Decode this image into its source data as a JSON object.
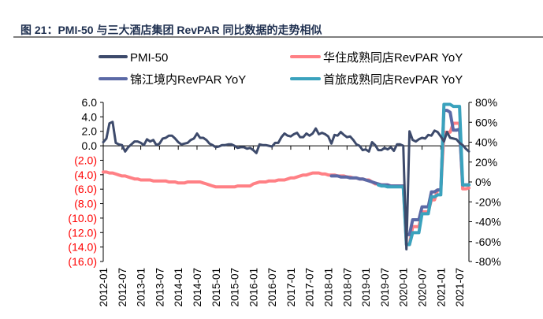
{
  "title": "图 21：PMI-50 与三大酒店集团 RevPAR 同比数据的走势相似",
  "chart_data": {
    "type": "line",
    "title": "图 21：PMI-50 与三大酒店集团 RevPAR 同比数据的走势相似",
    "x_range": [
      "2012-01",
      "2021-10"
    ],
    "x_tick_labels": [
      "2012-01",
      "2012-07",
      "2013-01",
      "2013-07",
      "2014-01",
      "2014-07",
      "2015-01",
      "2015-07",
      "2016-01",
      "2016-07",
      "2017-01",
      "2017-07",
      "2018-01",
      "2018-07",
      "2019-01",
      "2019-07",
      "2020-01",
      "2020-07",
      "2021-01",
      "2021-07"
    ],
    "left_axis": {
      "range": [
        -16,
        6
      ],
      "tick_labels": [
        "6.0",
        "4.0",
        "2.0",
        "0.0",
        "(2.0)",
        "(4.0)",
        "(6.0)",
        "(8.0)",
        "(10.0)",
        "(12.0)",
        "(14.0)",
        "(16.0)"
      ],
      "ticks": [
        6,
        4,
        2,
        0,
        -2,
        -4,
        -6,
        -8,
        -10,
        -12,
        -14,
        -16
      ],
      "negative_color": "#ff0000"
    },
    "right_axis": {
      "range": [
        -80,
        80
      ],
      "tick_labels": [
        "80%",
        "60%",
        "40%",
        "20%",
        "0%",
        "-20%",
        "-40%",
        "-60%",
        "-80%"
      ],
      "ticks": [
        80,
        60,
        40,
        20,
        0,
        -20,
        -40,
        -60,
        -80
      ]
    },
    "grid": false,
    "legend_placement": "top",
    "series": [
      {
        "name": "PMI-50",
        "axis": "left",
        "color": "#3d4a6b",
        "start": "2012-01",
        "values": [
          0.5,
          1.0,
          3.1,
          3.3,
          0.4,
          0.2,
          0.1,
          -0.8,
          -0.2,
          0.2,
          0.6,
          0.6,
          0.4,
          0.1,
          0.9,
          0.6,
          0.8,
          0.1,
          0.3,
          1.0,
          1.1,
          1.4,
          1.4,
          1.0,
          0.5,
          0.2,
          0.3,
          0.4,
          0.8,
          1.0,
          1.7,
          1.1,
          1.1,
          0.8,
          0.3,
          0.1,
          -0.2,
          -0.1,
          0.1,
          0.1,
          0.2,
          0.2,
          0.0,
          -0.3,
          -0.2,
          -0.2,
          -0.4,
          -0.3,
          -0.6,
          -1.0,
          0.2,
          0.1,
          0.1,
          0.0,
          -0.1,
          0.4,
          0.4,
          1.2,
          1.7,
          1.4,
          1.3,
          1.6,
          1.8,
          1.2,
          1.2,
          1.7,
          1.4,
          1.7,
          2.4,
          1.6,
          1.8,
          1.6,
          1.3,
          0.3,
          1.5,
          1.4,
          1.9,
          1.5,
          1.2,
          1.3,
          0.8,
          0.2,
          0.0,
          -0.6,
          -0.5,
          -0.8,
          0.5,
          0.1,
          -0.6,
          -0.6,
          -0.3,
          -0.5,
          -0.2,
          -0.7,
          0.2,
          0.2,
          0.0,
          -14.3,
          2.0,
          0.8,
          0.6,
          0.9,
          1.1,
          1.0,
          1.5,
          1.4,
          2.1,
          1.9,
          1.3,
          0.6,
          1.9,
          1.1,
          1.0,
          0.9,
          0.4,
          0.1,
          -0.4,
          -0.8
        ]
      },
      {
        "name": "华住成熟同店RevPAR YoY",
        "axis": "right",
        "color": "#ff8085",
        "start": "2012-01",
        "values": [
          10,
          10,
          9,
          9,
          8,
          7,
          6,
          6,
          5,
          4,
          3,
          3,
          2,
          2,
          2,
          2,
          1,
          1,
          1,
          1,
          1,
          0,
          0,
          0,
          -1,
          -1,
          -1,
          0,
          0,
          0,
          0,
          0,
          -1,
          -2,
          -3,
          -4,
          -5,
          -5,
          -5,
          -5,
          -5,
          -5,
          -5,
          -4,
          -4,
          -4,
          -4,
          -4,
          -2,
          -1,
          0,
          0,
          0,
          1,
          1,
          1,
          2,
          2,
          2,
          3,
          4,
          4,
          5,
          6,
          7,
          7,
          8,
          9,
          9,
          9,
          8,
          8,
          7,
          7,
          7,
          6,
          6,
          6,
          5,
          5,
          4,
          4,
          3,
          3,
          2,
          2,
          0,
          -2,
          -2,
          -3,
          -3,
          -3,
          -4,
          -4,
          -4,
          -4,
          -4,
          -63,
          -63,
          -45,
          -45,
          -45,
          -30,
          -30,
          -30,
          -18,
          -18,
          -8,
          -8,
          50,
          50,
          50,
          59,
          59,
          59,
          -7,
          -7,
          -6
        ]
      },
      {
        "name": "锦江境内RevPAR YoY",
        "axis": "right",
        "color": "#5b69a6",
        "start": "2018-02",
        "values": [
          6,
          6,
          6,
          5,
          5,
          5,
          4,
          4,
          4,
          3,
          3,
          2,
          1,
          0,
          -1,
          -2,
          -3,
          -3,
          -3,
          -4,
          -4,
          -4,
          -4,
          -4,
          -53,
          -53,
          -38,
          -38,
          -38,
          -25,
          -25,
          -25,
          -10,
          -10,
          -8,
          -8,
          72,
          72,
          70,
          52,
          52,
          53,
          -3,
          -3,
          -3
        ]
      },
      {
        "name": "首旅成熟同店RevPAR YoY",
        "axis": "right",
        "color": "#3aa2bd",
        "start": "2019-05",
        "values": [
          -3,
          -4,
          -4,
          -5,
          -5,
          -5,
          -5,
          -5,
          -5,
          -63,
          -63,
          -51,
          -51,
          -51,
          -32,
          -32,
          -32,
          -15,
          -15,
          -13,
          -13,
          78,
          78,
          78,
          76,
          76,
          76,
          -3,
          -3,
          -3
        ]
      }
    ]
  }
}
